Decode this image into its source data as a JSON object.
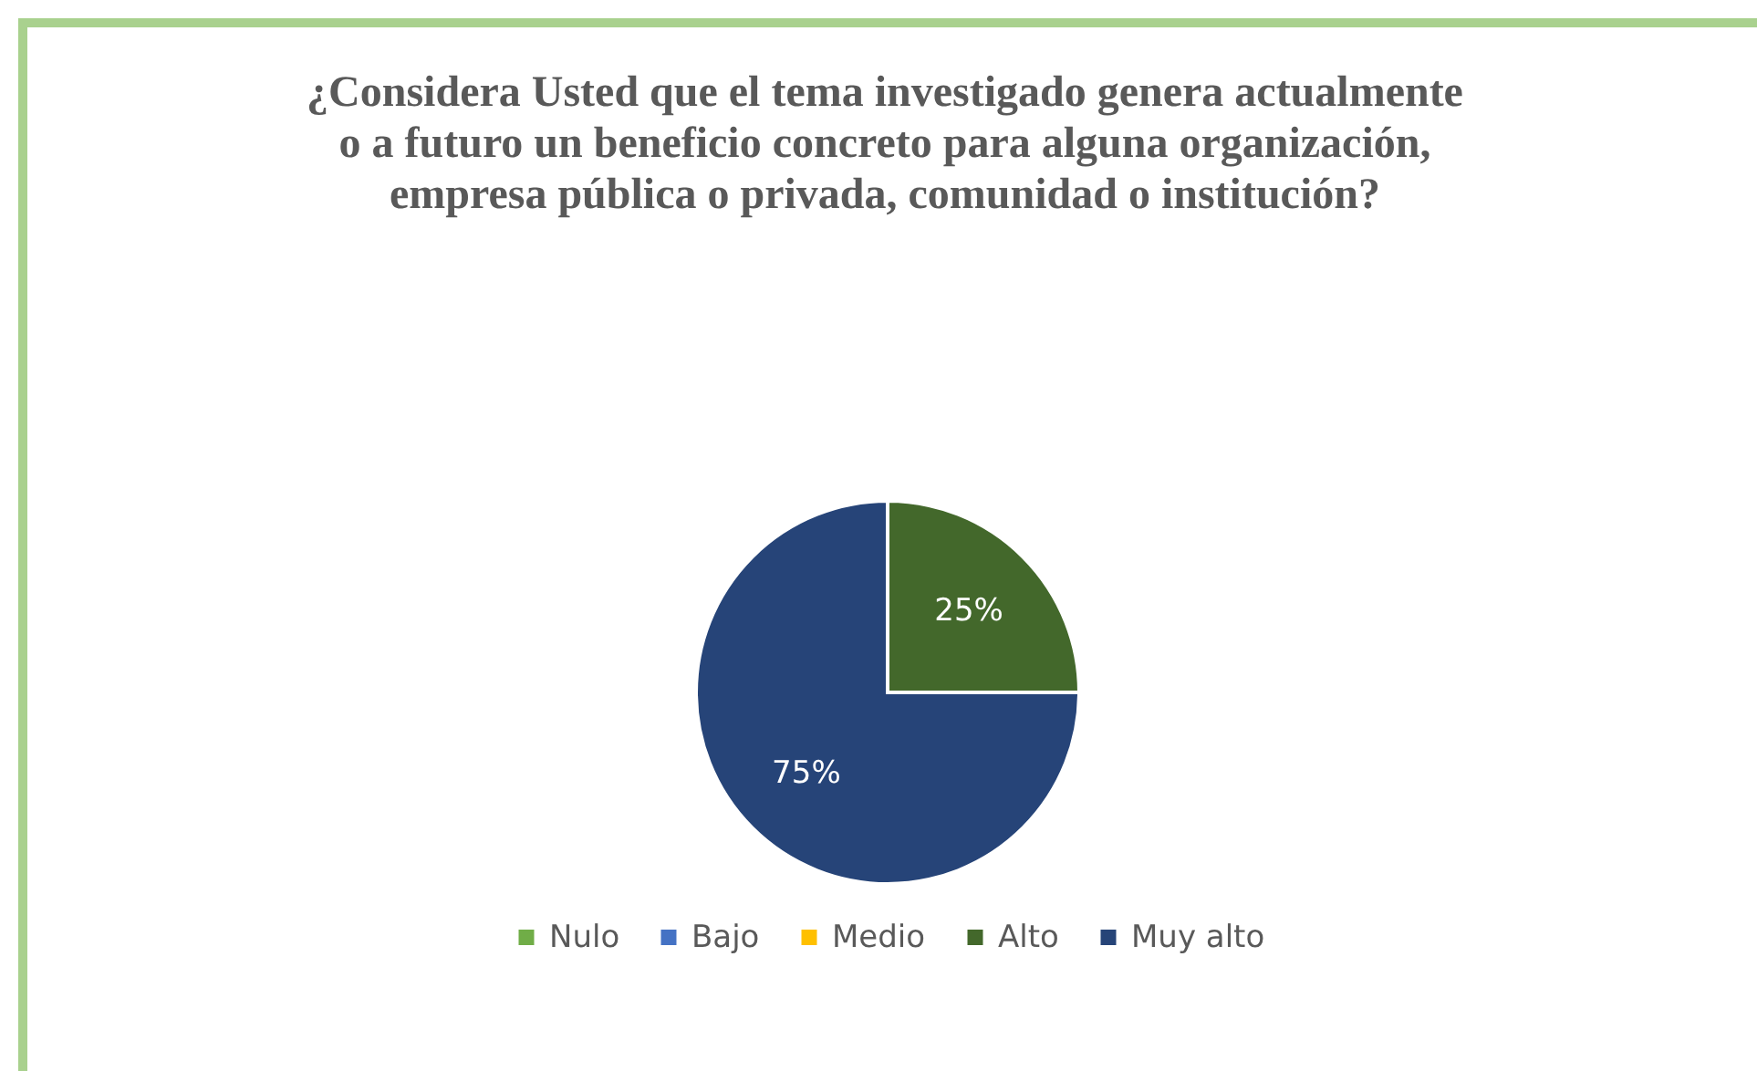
{
  "chart_data": {
    "type": "pie",
    "title": "¿Considera Usted que el tema investigado genera actualmente o a futuro un beneficio concreto para alguna organización, empresa pública o privada, comunidad o institución?",
    "categories": [
      "Nulo",
      "Bajo",
      "Medio",
      "Alto",
      "Muy alto"
    ],
    "values": [
      0,
      0,
      0,
      25,
      75
    ],
    "colors": [
      "#70ad47",
      "#4472c4",
      "#ffc000",
      "#43682b",
      "#264478"
    ],
    "value_labels": [
      null,
      null,
      null,
      "25%",
      "75%"
    ],
    "legend": "bottom"
  }
}
